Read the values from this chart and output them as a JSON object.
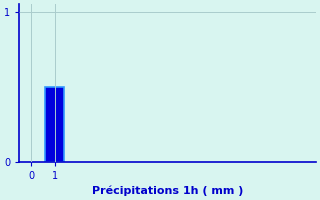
{
  "categories": [
    1
  ],
  "values": [
    0.5
  ],
  "bar_color": "#0000dd",
  "bar_edge_color": "#3399ff",
  "background_color": "#d8f5f0",
  "xlabel": "Précipitations 1h ( mm )",
  "xlabel_color": "#0000cc",
  "xlabel_fontsize": 8,
  "tick_color": "#0000cc",
  "tick_fontsize": 7,
  "ylim": [
    0,
    1.05
  ],
  "xlim": [
    -0.5,
    12
  ],
  "yticks": [
    0,
    1
  ],
  "xticks": [
    0,
    1
  ],
  "grid_color": "#aacccc",
  "axis_color": "#0000cc",
  "bar_width": 0.8
}
